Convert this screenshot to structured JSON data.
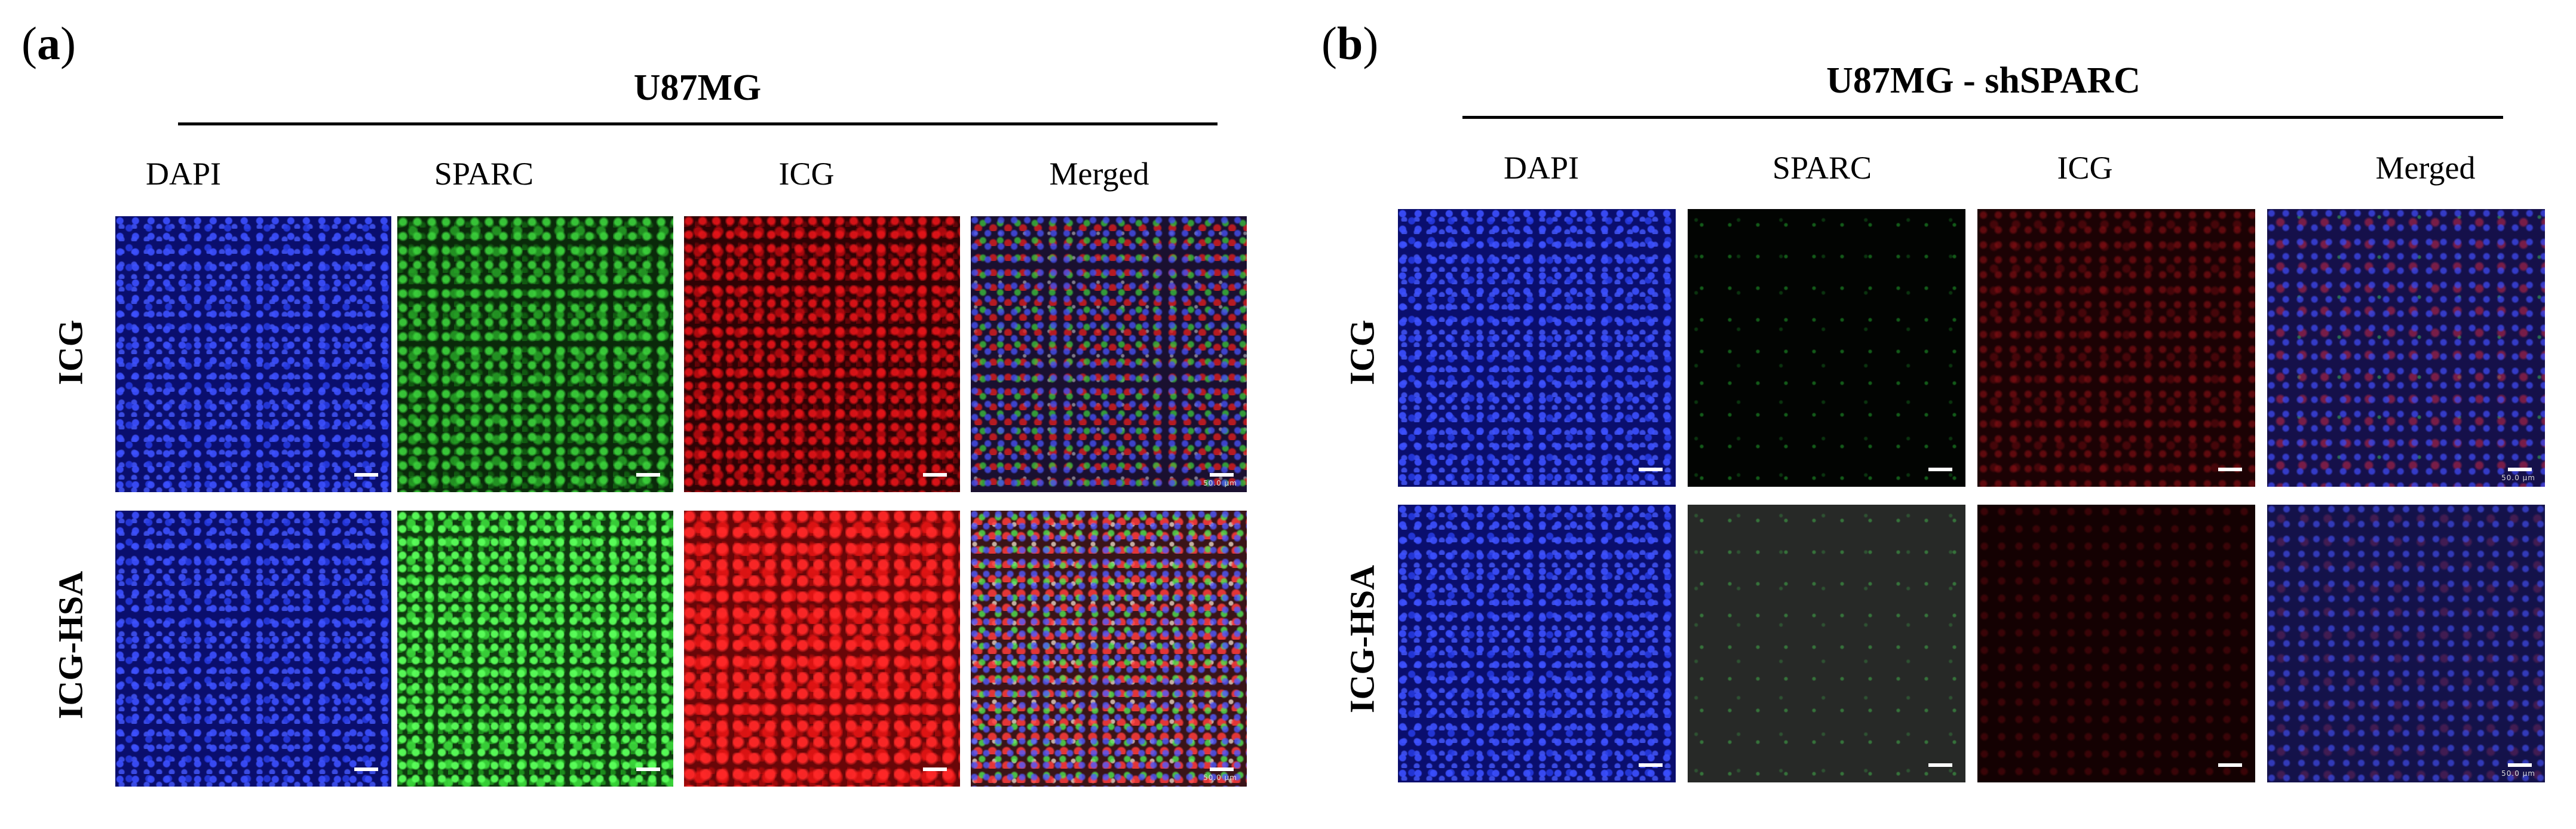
{
  "panel_a": {
    "letter_open": "(",
    "letter": "a",
    "letter_close": ")",
    "title": "U87MG",
    "columns": [
      "DAPI",
      "SPARC",
      "ICG",
      "Merged"
    ],
    "rows": [
      "ICG",
      "ICG-HSA"
    ]
  },
  "panel_b": {
    "letter_open": "(",
    "letter": "b",
    "letter_close": ")",
    "title": "U87MG - shSPARC",
    "columns": [
      "DAPI",
      "SPARC",
      "ICG",
      "Merged"
    ],
    "rows": [
      "ICG",
      "ICG-HSA"
    ]
  },
  "scale_label": "50.0 μm"
}
